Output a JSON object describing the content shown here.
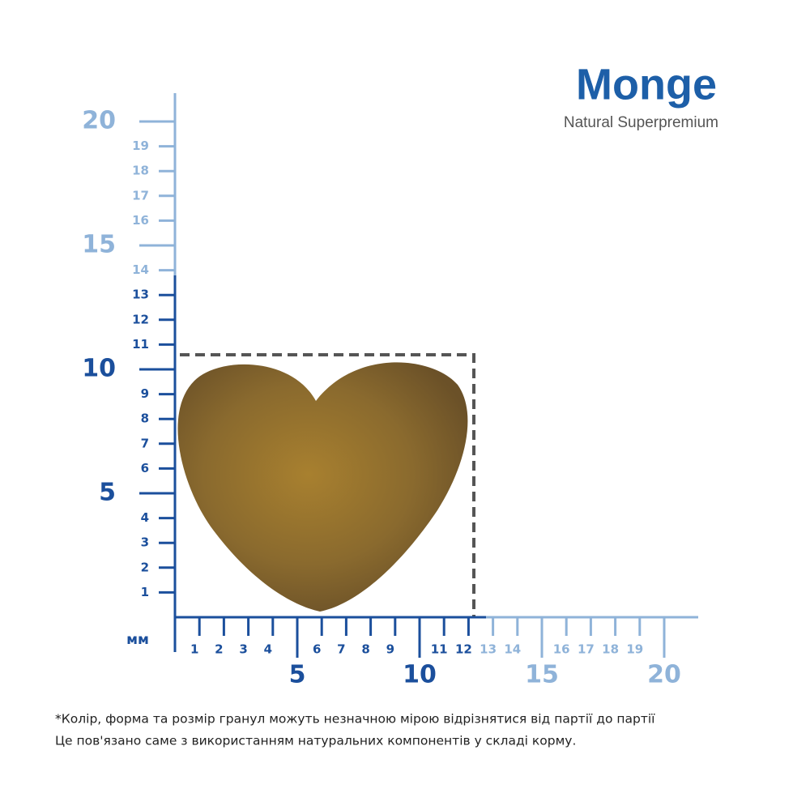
{
  "brand": {
    "name": "Monge",
    "tagline": "Natural Superpremium"
  },
  "ruler": {
    "unit": "мм",
    "vertical": {
      "minor_dark": [
        1,
        2,
        3,
        4,
        6,
        7,
        8,
        9,
        11,
        12,
        13
      ],
      "major_dark": [
        5,
        10
      ],
      "minor_light": [
        14,
        16,
        17,
        18,
        19
      ],
      "major_light": [
        15,
        20
      ]
    },
    "horizontal": {
      "minor_dark": [
        1,
        2,
        3,
        4,
        6,
        7,
        8,
        9,
        11,
        12
      ],
      "major_dark": [
        5,
        10
      ],
      "minor_light": [
        13,
        14,
        16,
        17,
        18,
        19
      ],
      "major_light": [
        15,
        20
      ]
    }
  },
  "footnote": [
    "*Колір, форма та розмір гранул можуть незначною мірою відрізнятися від партії до партії",
    "Це пов'язано саме з використанням натуральних компонентів у складі корму."
  ]
}
